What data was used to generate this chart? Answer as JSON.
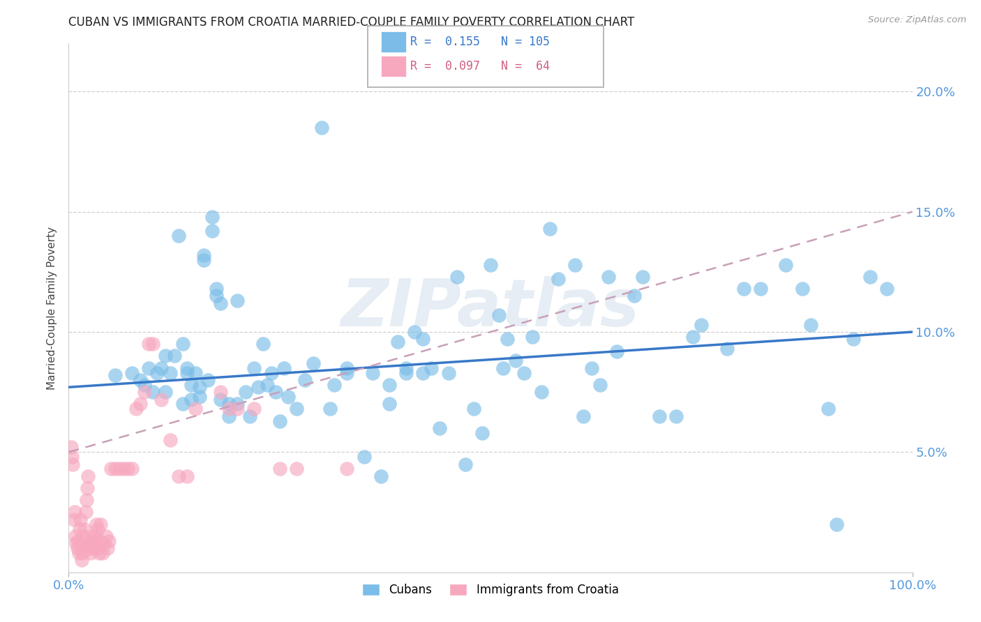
{
  "title": "CUBAN VS IMMIGRANTS FROM CROATIA MARRIED-COUPLE FAMILY POVERTY CORRELATION CHART",
  "source": "Source: ZipAtlas.com",
  "ylabel": "Married-Couple Family Poverty",
  "xlim": [
    0.0,
    1.0
  ],
  "ylim": [
    0.0,
    0.22
  ],
  "yticks": [
    0.0,
    0.05,
    0.1,
    0.15,
    0.2
  ],
  "ytick_labels": [
    "",
    "5.0%",
    "10.0%",
    "15.0%",
    "20.0%"
  ],
  "xtick_labels": [
    "0.0%",
    "100.0%"
  ],
  "legend_r_blue": "R =  0.155",
  "legend_n_blue": "N = 105",
  "legend_r_pink": "R =  0.097",
  "legend_n_pink": "N =  64",
  "blue_color": "#7bbde8",
  "pink_color": "#f7a8bf",
  "blue_line_color": "#3878c8",
  "pink_line_color": "#e06888",
  "pink_dash_color": "#c8a0b8",
  "grid_color": "#d0d0d0",
  "title_color": "#222222",
  "axis_label_color": "#444444",
  "tick_color_right": "#5599dd",
  "watermark": "ZIPatlas",
  "cubans_label": "Cubans",
  "croatia_label": "Immigrants from Croatia",
  "blue_scatter_x": [
    0.055,
    0.075,
    0.085,
    0.09,
    0.095,
    0.1,
    0.105,
    0.11,
    0.115,
    0.115,
    0.12,
    0.125,
    0.13,
    0.135,
    0.135,
    0.14,
    0.14,
    0.145,
    0.145,
    0.15,
    0.155,
    0.155,
    0.16,
    0.16,
    0.165,
    0.17,
    0.17,
    0.175,
    0.175,
    0.18,
    0.18,
    0.19,
    0.19,
    0.2,
    0.2,
    0.21,
    0.215,
    0.22,
    0.225,
    0.23,
    0.235,
    0.24,
    0.245,
    0.25,
    0.255,
    0.26,
    0.27,
    0.28,
    0.29,
    0.3,
    0.31,
    0.315,
    0.33,
    0.35,
    0.37,
    0.38,
    0.39,
    0.4,
    0.41,
    0.42,
    0.43,
    0.44,
    0.45,
    0.46,
    0.47,
    0.48,
    0.49,
    0.5,
    0.51,
    0.515,
    0.52,
    0.53,
    0.54,
    0.55,
    0.56,
    0.57,
    0.58,
    0.6,
    0.61,
    0.62,
    0.63,
    0.64,
    0.65,
    0.67,
    0.68,
    0.7,
    0.72,
    0.74,
    0.75,
    0.78,
    0.8,
    0.82,
    0.85,
    0.87,
    0.88,
    0.9,
    0.91,
    0.93,
    0.95,
    0.97,
    0.33,
    0.36,
    0.38,
    0.4,
    0.42
  ],
  "blue_scatter_y": [
    0.082,
    0.083,
    0.08,
    0.078,
    0.085,
    0.075,
    0.083,
    0.085,
    0.09,
    0.075,
    0.083,
    0.09,
    0.14,
    0.095,
    0.07,
    0.085,
    0.083,
    0.078,
    0.072,
    0.083,
    0.077,
    0.073,
    0.132,
    0.13,
    0.08,
    0.148,
    0.142,
    0.118,
    0.115,
    0.072,
    0.112,
    0.07,
    0.065,
    0.113,
    0.07,
    0.075,
    0.065,
    0.085,
    0.077,
    0.095,
    0.078,
    0.083,
    0.075,
    0.063,
    0.085,
    0.073,
    0.068,
    0.08,
    0.087,
    0.185,
    0.068,
    0.078,
    0.085,
    0.048,
    0.04,
    0.078,
    0.096,
    0.085,
    0.1,
    0.097,
    0.085,
    0.06,
    0.083,
    0.123,
    0.045,
    0.068,
    0.058,
    0.128,
    0.107,
    0.085,
    0.097,
    0.088,
    0.083,
    0.098,
    0.075,
    0.143,
    0.122,
    0.128,
    0.065,
    0.085,
    0.078,
    0.123,
    0.092,
    0.115,
    0.123,
    0.065,
    0.065,
    0.098,
    0.103,
    0.093,
    0.118,
    0.118,
    0.128,
    0.118,
    0.103,
    0.068,
    0.02,
    0.097,
    0.123,
    0.118,
    0.083,
    0.083,
    0.07,
    0.083,
    0.083
  ],
  "pink_scatter_x": [
    0.003,
    0.004,
    0.005,
    0.006,
    0.007,
    0.008,
    0.009,
    0.01,
    0.011,
    0.012,
    0.013,
    0.014,
    0.015,
    0.016,
    0.017,
    0.018,
    0.019,
    0.02,
    0.021,
    0.022,
    0.023,
    0.024,
    0.025,
    0.026,
    0.027,
    0.028,
    0.029,
    0.03,
    0.031,
    0.032,
    0.033,
    0.034,
    0.035,
    0.036,
    0.037,
    0.038,
    0.04,
    0.042,
    0.044,
    0.046,
    0.048,
    0.05,
    0.055,
    0.06,
    0.065,
    0.07,
    0.075,
    0.08,
    0.085,
    0.09,
    0.095,
    0.1,
    0.11,
    0.12,
    0.13,
    0.14,
    0.15,
    0.18,
    0.19,
    0.2,
    0.22,
    0.25,
    0.27,
    0.33
  ],
  "pink_scatter_y": [
    0.052,
    0.048,
    0.045,
    0.022,
    0.025,
    0.015,
    0.012,
    0.01,
    0.013,
    0.008,
    0.018,
    0.022,
    0.005,
    0.008,
    0.012,
    0.015,
    0.018,
    0.025,
    0.03,
    0.035,
    0.04,
    0.01,
    0.012,
    0.008,
    0.01,
    0.013,
    0.015,
    0.012,
    0.01,
    0.015,
    0.02,
    0.018,
    0.01,
    0.008,
    0.013,
    0.02,
    0.008,
    0.012,
    0.015,
    0.01,
    0.013,
    0.043,
    0.043,
    0.043,
    0.043,
    0.043,
    0.043,
    0.068,
    0.07,
    0.075,
    0.095,
    0.095,
    0.072,
    0.055,
    0.04,
    0.04,
    0.068,
    0.075,
    0.068,
    0.068,
    0.068,
    0.043,
    0.043,
    0.043
  ],
  "blue_line_x": [
    0.0,
    1.0
  ],
  "blue_line_y": [
    0.077,
    0.1
  ],
  "pink_line_x": [
    0.0,
    1.0
  ],
  "pink_line_y": [
    0.05,
    0.15
  ]
}
